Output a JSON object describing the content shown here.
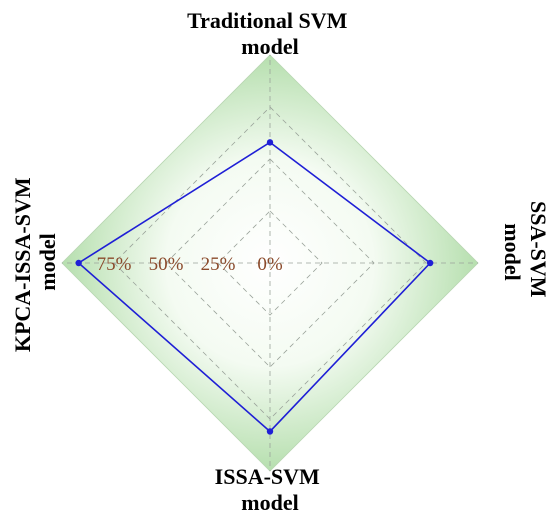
{
  "chart_data": {
    "type": "radar",
    "axes": [
      {
        "key": "top",
        "label_lines": [
          "Traditional SVM",
          "model"
        ]
      },
      {
        "key": "right",
        "label_lines": [
          "SSA-SVM",
          "model"
        ]
      },
      {
        "key": "bottom",
        "label_lines": [
          "ISSA-SVM",
          "model"
        ]
      },
      {
        "key": "left",
        "label_lines": [
          "KPCA-ISSA-SVM",
          "model"
        ]
      }
    ],
    "tick_labels": [
      "75%",
      "50%",
      "25%",
      "0%"
    ],
    "tick_values": [
      75,
      50,
      25,
      0
    ],
    "rmax": 100,
    "series": [
      {
        "values": [
          58,
          77,
          81,
          92
        ],
        "color": "#1f1fd6"
      }
    ],
    "colors": {
      "fill_outer": "#a9d9a0",
      "fill_inner": "#ffffff",
      "grid": "#9aa39a",
      "series": "#1f1fd6"
    },
    "grid": true
  }
}
